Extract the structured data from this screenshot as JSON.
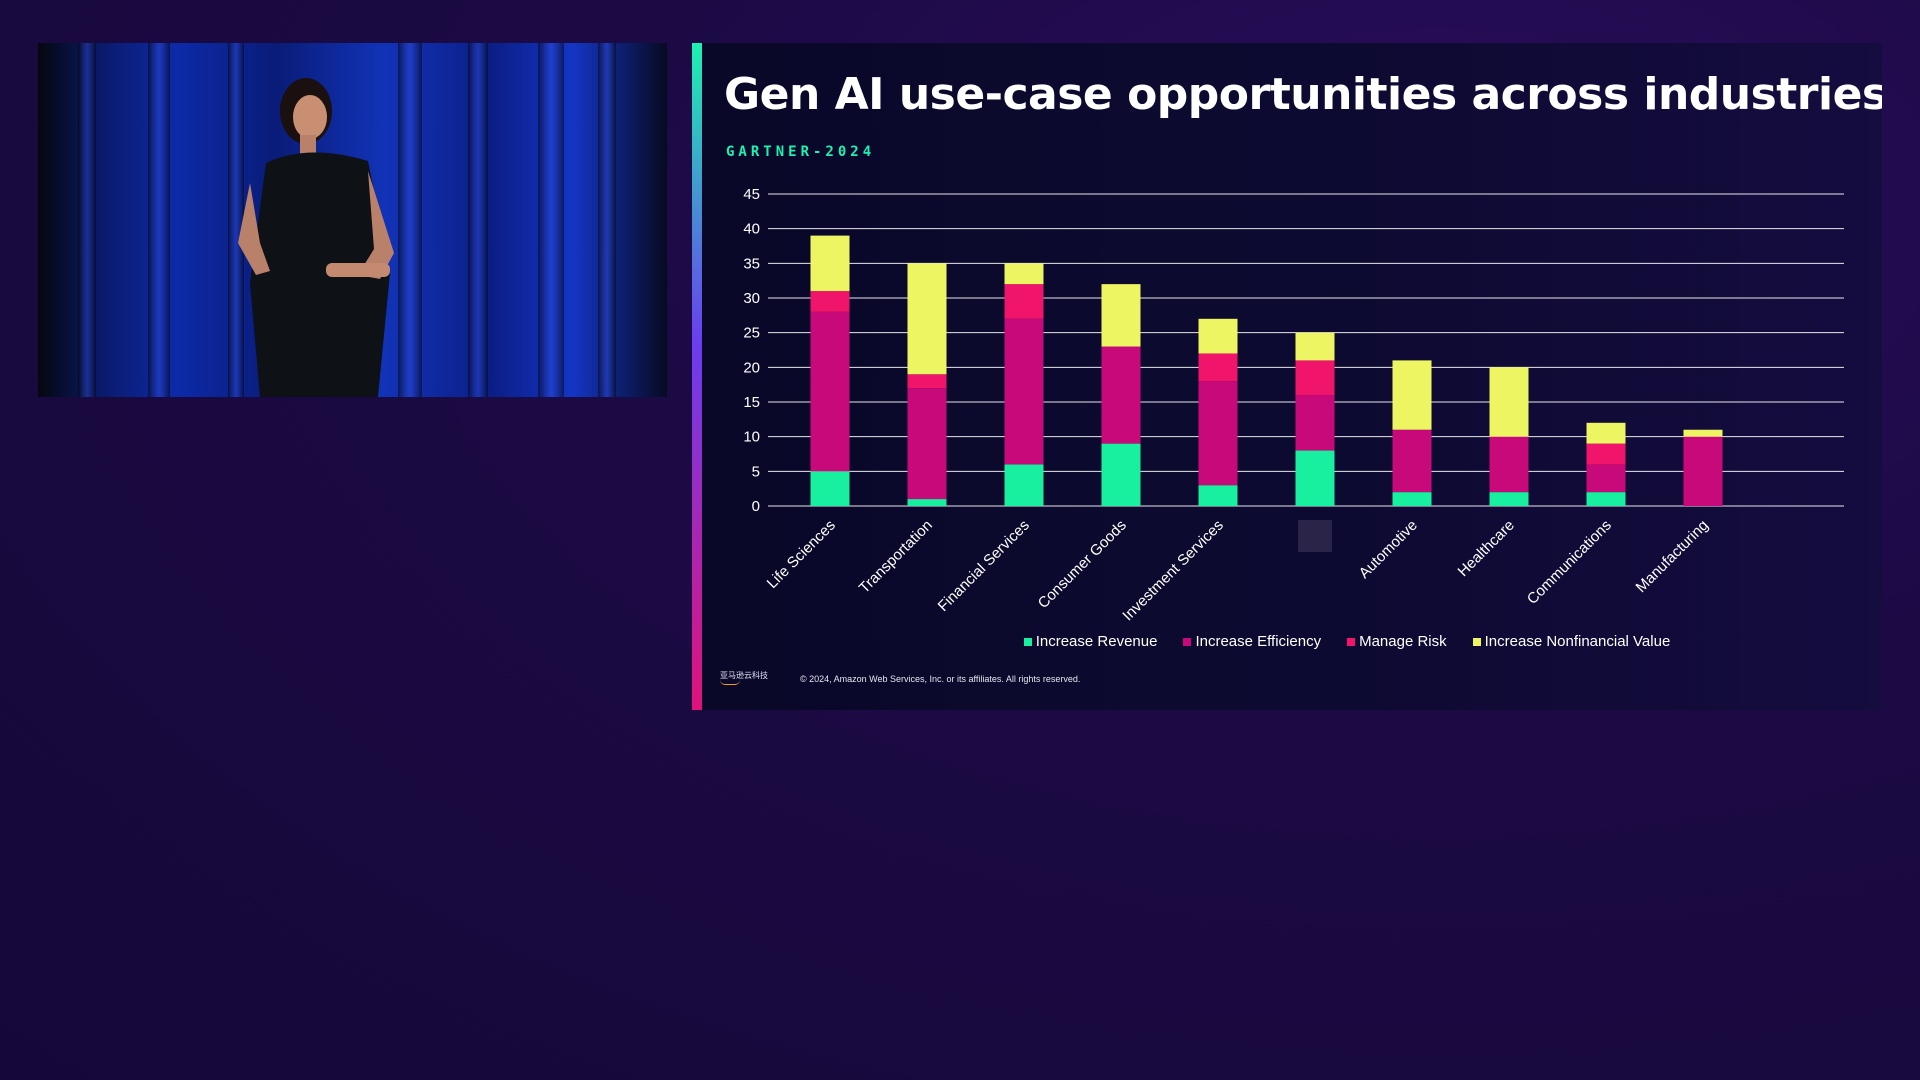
{
  "slide": {
    "title": "Gen AI use-case opportunities across industries",
    "subtitle": "GARTNER-2024",
    "copyright": "© 2024, Amazon Web Services, Inc. or its affiliates. All rights reserved.",
    "logo_text": "亚马逊云科技"
  },
  "colors": {
    "increase_revenue": "#18f0a0",
    "increase_efficiency": "#c8097a",
    "manage_risk": "#f0146a",
    "increase_nonfinancial": "#eef562"
  },
  "chart_data": {
    "type": "bar",
    "stacked": true,
    "title": "Gen AI use-case opportunities across industries",
    "ylim": [
      0,
      45
    ],
    "yticks": [
      0,
      5,
      10,
      15,
      20,
      25,
      30,
      35,
      40,
      45
    ],
    "grid": true,
    "legend_position": "bottom",
    "categories": [
      "Life Sciences",
      "Transportation",
      "Financial Services",
      "Consumer Goods",
      "Investment Services",
      "",
      "Automotive",
      "Healthcare",
      "Communications",
      "Manufacturing"
    ],
    "series": [
      {
        "name": "Increase Revenue",
        "color": "#18f0a0",
        "values": [
          5,
          1,
          6,
          9,
          3,
          8,
          2,
          2,
          2,
          0
        ]
      },
      {
        "name": "Increase Efficiency",
        "color": "#c8097a",
        "values": [
          23,
          16,
          21,
          14,
          15,
          8,
          9,
          8,
          4,
          10
        ]
      },
      {
        "name": "Manage Risk",
        "color": "#f0146a",
        "values": [
          3,
          2,
          5,
          0,
          4,
          5,
          0,
          0,
          3,
          0
        ]
      },
      {
        "name": "Increase Nonfinancial Value",
        "color": "#eef562",
        "values": [
          8,
          16,
          3,
          9,
          5,
          4,
          10,
          10,
          3,
          1
        ]
      }
    ]
  }
}
